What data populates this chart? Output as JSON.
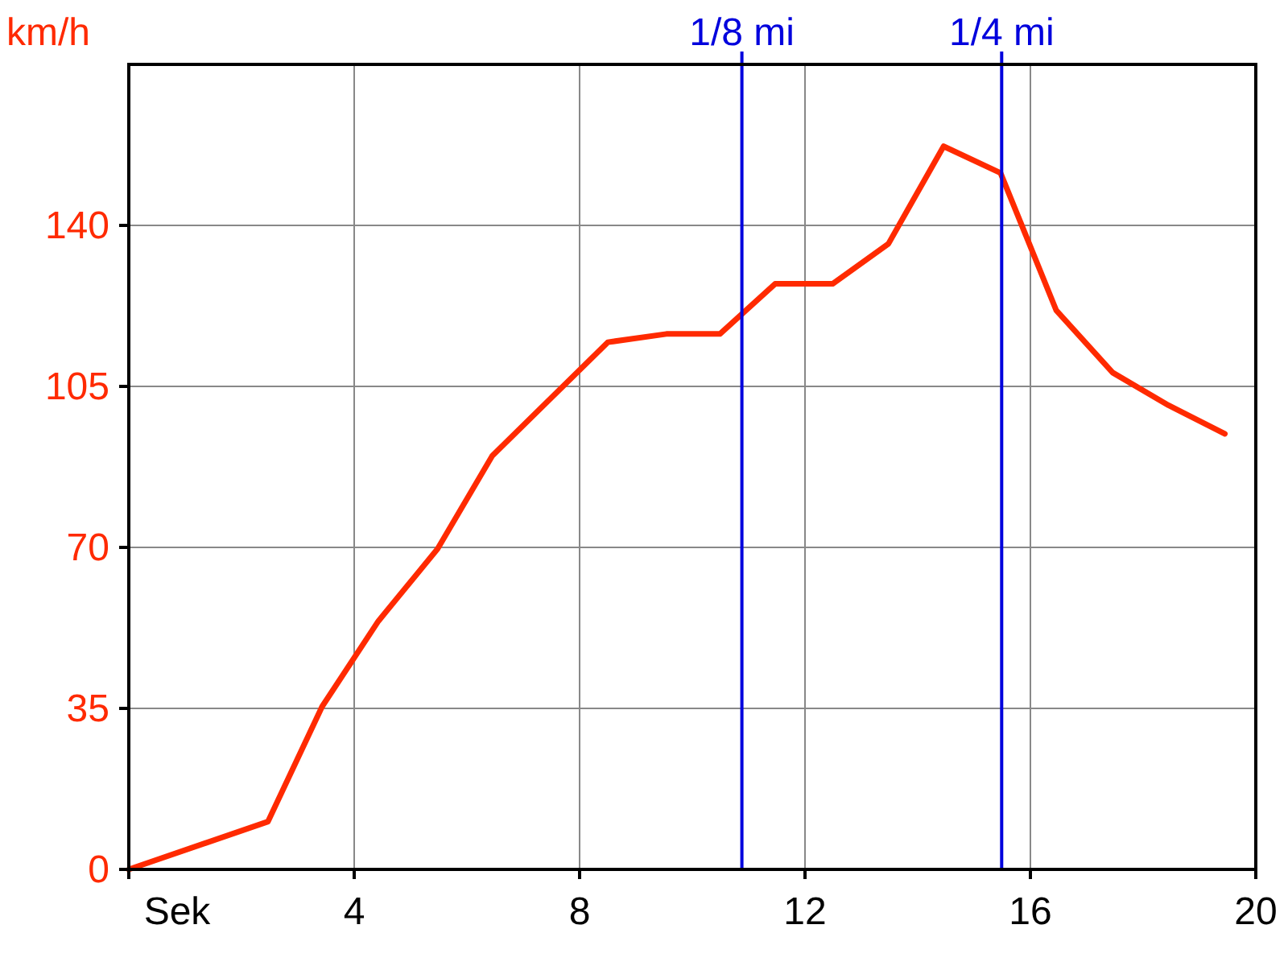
{
  "chart_data": {
    "type": "line",
    "xlabel": "Sek",
    "ylabel": "km/h",
    "xlim": [
      0,
      20
    ],
    "xticks": [
      {
        "value": 0,
        "label": null
      },
      4,
      8,
      12,
      16,
      20
    ],
    "ylim": [
      0,
      175
    ],
    "yticks": [
      0,
      35,
      70,
      105,
      140
    ],
    "grid": true,
    "marker": "none",
    "line_style": "solid",
    "series": [
      {
        "color": "#ff2a00",
        "x": [
          0,
          2.47,
          3.43,
          4.43,
          5.48,
          6.45,
          8.5,
          9.54,
          10.49,
          11.47,
          12.49,
          13.48,
          14.46,
          15.47,
          16.46,
          17.46,
          18.45,
          19.45
        ],
        "values": [
          0,
          10.4,
          35.4,
          54,
          69.7,
          89.9,
          114.6,
          116.4,
          116.4,
          127.3,
          127.3,
          136,
          157.2,
          151.4,
          121.5,
          108,
          100.9,
          94.7
        ]
      }
    ],
    "ref_lines": [
      {
        "axis": "x",
        "value": 10.88,
        "label": "1/8 mi",
        "color": "#0000dd"
      },
      {
        "axis": "x",
        "value": 15.49,
        "label": "1/4 mi",
        "color": "#0000dd"
      }
    ]
  }
}
